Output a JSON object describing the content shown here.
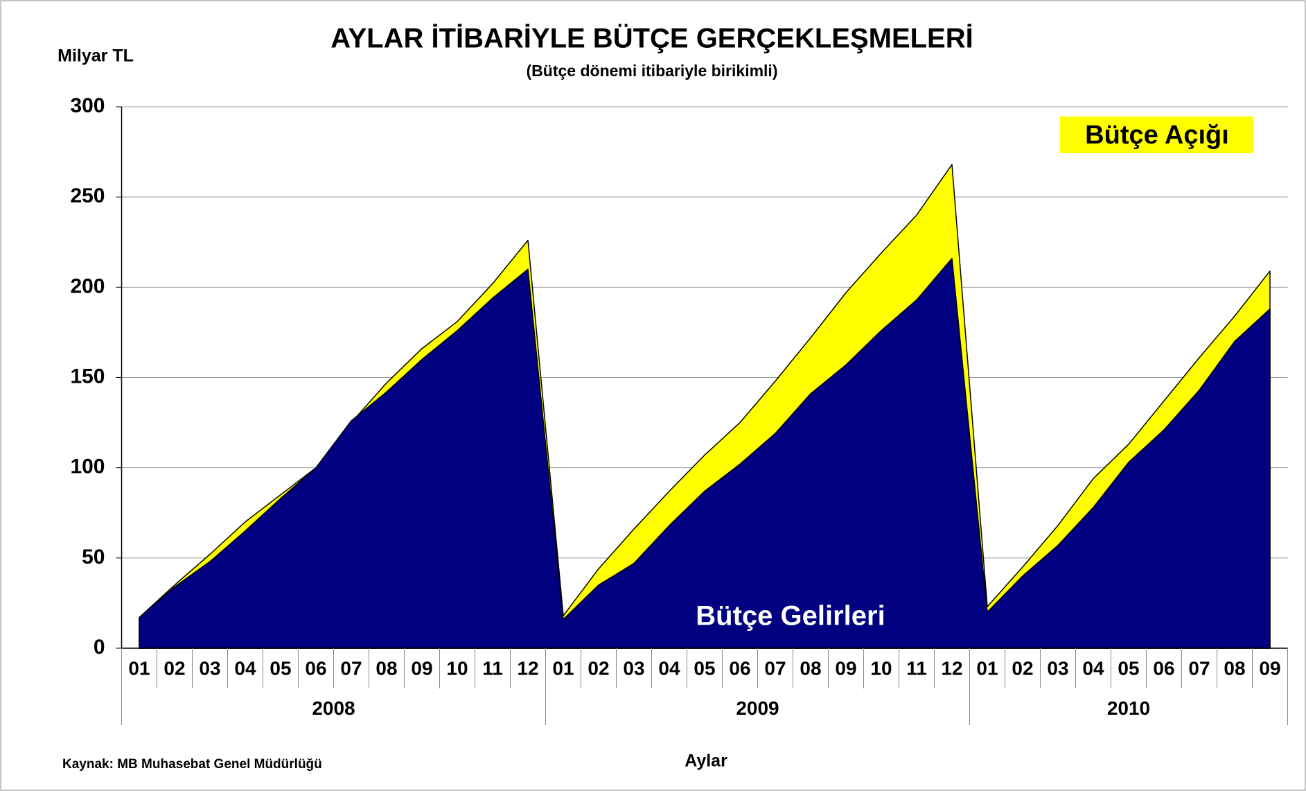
{
  "chart_data": {
    "type": "area",
    "title": "AYLAR İTİBARİYLE BÜTÇE GERÇEKLEŞMELERİ",
    "subtitle": "(Bütçe dönemi itibariyle birikimli)",
    "y_label": "Milyar TL",
    "x_label": "Aylar",
    "source": "Kaynak: MB Muhasebat Genel Müdürlüğü",
    "categories": [
      "01",
      "02",
      "03",
      "04",
      "05",
      "06",
      "07",
      "08",
      "09",
      "10",
      "11",
      "12",
      "01",
      "02",
      "03",
      "04",
      "05",
      "06",
      "07",
      "08",
      "09",
      "10",
      "11",
      "12",
      "01",
      "02",
      "03",
      "04",
      "05",
      "06",
      "07",
      "08",
      "09"
    ],
    "year_groups": [
      "2008",
      "2009",
      "2010"
    ],
    "series": [
      {
        "name": "Bütçe Açığı",
        "color": "#ffff00",
        "values": [
          17,
          35,
          52,
          70,
          85,
          100,
          125,
          147,
          166,
          181,
          202,
          226,
          18,
          44,
          66,
          87,
          107,
          125,
          148,
          172,
          197,
          219,
          240,
          268,
          23,
          45,
          68,
          94,
          113,
          137,
          161,
          184,
          209
        ]
      },
      {
        "name": "Bütçe Gelirleri",
        "color": "#000080",
        "values": [
          17,
          34,
          48,
          65,
          83,
          100,
          126,
          142,
          160,
          176,
          194,
          210,
          16,
          35,
          47,
          68,
          87,
          102,
          119,
          141,
          157,
          176,
          193,
          216,
          20,
          40,
          57,
          78,
          103,
          121,
          143,
          170,
          188
        ]
      }
    ],
    "ylim": [
      0,
      300
    ],
    "yticks": [
      0,
      50,
      100,
      150,
      200,
      250,
      300
    ],
    "grid": true
  }
}
